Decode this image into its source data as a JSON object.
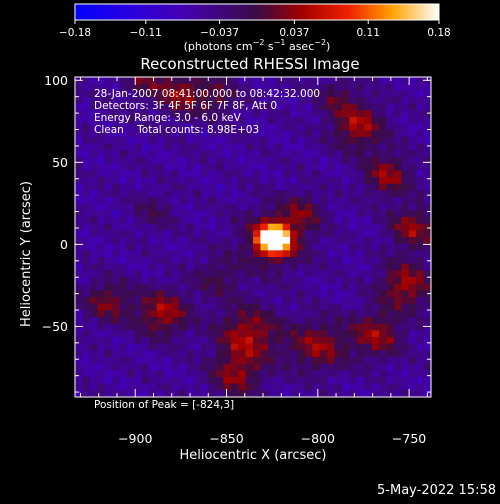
{
  "chart_data": {
    "type": "heatmap",
    "title": "Reconstructed RHESSI Image",
    "xlabel": "Heliocentric X (arcsec)",
    "ylabel": "Heliocentric Y (arcsec)",
    "xlim": [
      -933,
      -738
    ],
    "ylim": [
      -93,
      102
    ],
    "xticks": [
      {
        "v": -900,
        "l": "−900"
      },
      {
        "v": -850,
        "l": "−850"
      },
      {
        "v": -800,
        "l": "−800"
      },
      {
        "v": -750,
        "l": "−750"
      }
    ],
    "yticks": [
      {
        "v": 100,
        "l": "100"
      },
      {
        "v": 50,
        "l": "50"
      },
      {
        "v": 0,
        "l": "0"
      },
      {
        "v": -50,
        "l": "−50"
      }
    ],
    "colorbar": {
      "range": [
        -0.18,
        0.18
      ],
      "ticks": [
        {
          "v": -0.18,
          "l": "−0.18"
        },
        {
          "v": -0.11,
          "l": "−0.11"
        },
        {
          "v": -0.037,
          "l": "−0.037"
        },
        {
          "v": 0.037,
          "l": "0.037"
        },
        {
          "v": 0.11,
          "l": "0.11"
        },
        {
          "v": 0.18,
          "l": "0.18"
        }
      ],
      "unit_main": "(photons cm",
      "unit_e1": "−2",
      "unit_s": " s",
      "unit_e2": "−1",
      "unit_asec": " asec",
      "unit_e3": "−2",
      "unit_close": ")"
    },
    "annotations": [
      "28-Jan-2007 08:41:00.000 to 08:42:32.000",
      "Detectors: 3F 4F 5F 6F 7F 8F, Att 0",
      "Energy Range: 3.0 - 6.0 keV",
      "Clean    Total counts: 8.98E+03"
    ],
    "peak_label": "Position of Peak = [-824,3]",
    "peak": {
      "x": -824,
      "y": 3
    },
    "sources": [
      {
        "x": -824,
        "y": 3,
        "amp": 0.3,
        "sigma": 6
      },
      {
        "x": -824,
        "y": 3,
        "amp": 0.07,
        "sigma": 14
      },
      {
        "x": -778,
        "y": 72,
        "amp": 0.1,
        "sigma": 10
      },
      {
        "x": -762,
        "y": 42,
        "amp": 0.09,
        "sigma": 9
      },
      {
        "x": -748,
        "y": 10,
        "amp": 0.09,
        "sigma": 9
      },
      {
        "x": -752,
        "y": -25,
        "amp": 0.1,
        "sigma": 10
      },
      {
        "x": -768,
        "y": -55,
        "amp": 0.09,
        "sigma": 10
      },
      {
        "x": -800,
        "y": -62,
        "amp": 0.09,
        "sigma": 11
      },
      {
        "x": -838,
        "y": -55,
        "amp": 0.1,
        "sigma": 12
      },
      {
        "x": -845,
        "y": -80,
        "amp": 0.08,
        "sigma": 10
      },
      {
        "x": -885,
        "y": -42,
        "amp": 0.1,
        "sigma": 10
      },
      {
        "x": -915,
        "y": -35,
        "amp": 0.08,
        "sigma": 9
      },
      {
        "x": -875,
        "y": 92,
        "amp": 0.09,
        "sigma": 9
      },
      {
        "x": -855,
        "y": 90,
        "amp": 0.06,
        "sigma": 8
      },
      {
        "x": -895,
        "y": 100,
        "amp": 0.06,
        "sigma": 8
      },
      {
        "x": -808,
        "y": 20,
        "amp": 0.06,
        "sigma": 8
      },
      {
        "x": -855,
        "y": -20,
        "amp": 0.05,
        "sigma": 9
      },
      {
        "x": -890,
        "y": 20,
        "amp": 0.04,
        "sigma": 8
      },
      {
        "x": -790,
        "y": 90,
        "amp": 0.05,
        "sigma": 8
      }
    ]
  },
  "timestamp": "5-May-2022 15:58"
}
